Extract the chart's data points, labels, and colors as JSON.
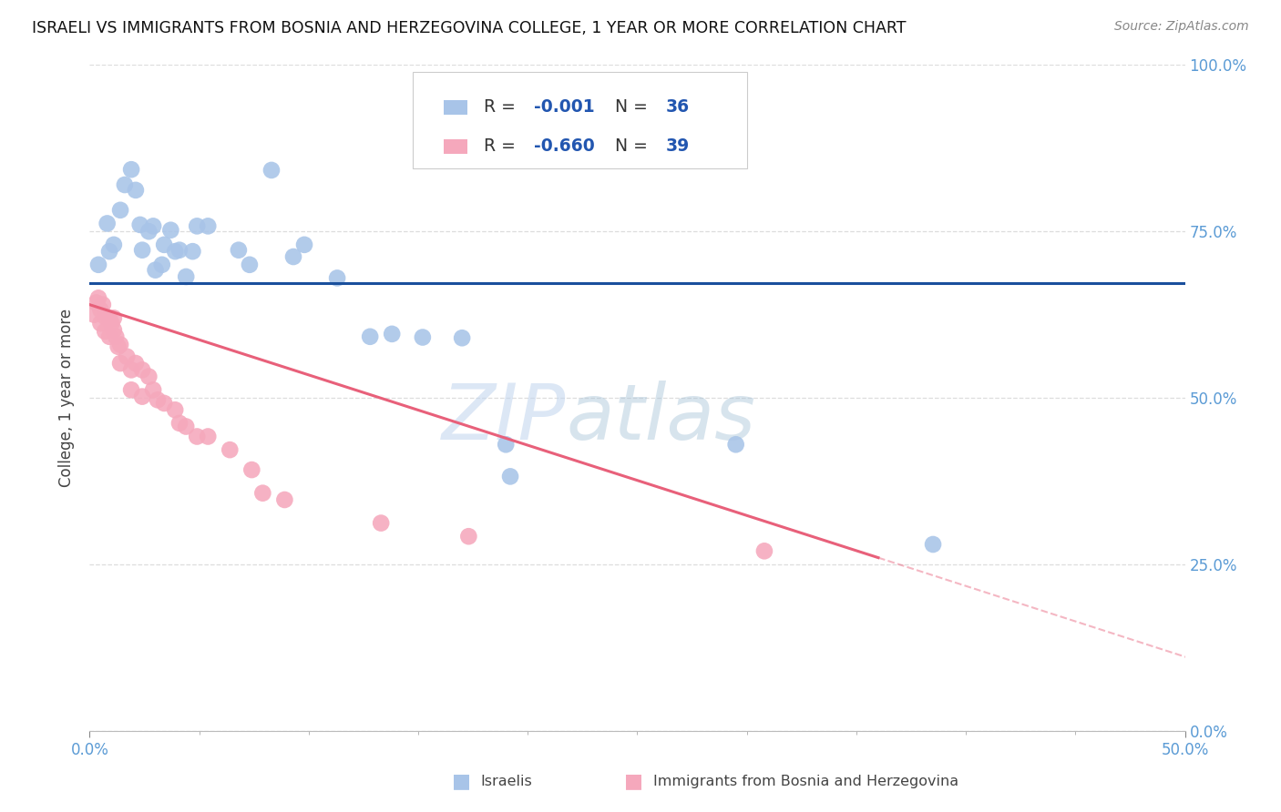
{
  "title": "ISRAELI VS IMMIGRANTS FROM BOSNIA AND HERZEGOVINA COLLEGE, 1 YEAR OR MORE CORRELATION CHART",
  "source": "Source: ZipAtlas.com",
  "ylabel_label": "College, 1 year or more",
  "legend_labels": [
    "Israelis",
    "Immigrants from Bosnia and Herzegovina"
  ],
  "blue_R": "-0.001",
  "blue_N": "36",
  "pink_R": "-0.660",
  "pink_N": "39",
  "blue_color": "#a8c4e8",
  "pink_color": "#f5a8bc",
  "blue_line_color": "#1a4f9c",
  "pink_line_color": "#e8607a",
  "blue_scatter": [
    [
      0.004,
      0.7
    ],
    [
      0.008,
      0.762
    ],
    [
      0.009,
      0.72
    ],
    [
      0.011,
      0.73
    ],
    [
      0.014,
      0.782
    ],
    [
      0.016,
      0.82
    ],
    [
      0.019,
      0.843
    ],
    [
      0.021,
      0.812
    ],
    [
      0.023,
      0.76
    ],
    [
      0.024,
      0.722
    ],
    [
      0.027,
      0.75
    ],
    [
      0.029,
      0.758
    ],
    [
      0.03,
      0.692
    ],
    [
      0.033,
      0.7
    ],
    [
      0.034,
      0.73
    ],
    [
      0.037,
      0.752
    ],
    [
      0.039,
      0.72
    ],
    [
      0.041,
      0.722
    ],
    [
      0.044,
      0.682
    ],
    [
      0.047,
      0.72
    ],
    [
      0.049,
      0.758
    ],
    [
      0.054,
      0.758
    ],
    [
      0.068,
      0.722
    ],
    [
      0.073,
      0.7
    ],
    [
      0.083,
      0.842
    ],
    [
      0.093,
      0.712
    ],
    [
      0.098,
      0.73
    ],
    [
      0.113,
      0.68
    ],
    [
      0.128,
      0.592
    ],
    [
      0.138,
      0.596
    ],
    [
      0.152,
      0.591
    ],
    [
      0.17,
      0.59
    ],
    [
      0.19,
      0.43
    ],
    [
      0.192,
      0.382
    ],
    [
      0.295,
      0.43
    ],
    [
      0.385,
      0.28
    ]
  ],
  "pink_scatter": [
    [
      0.002,
      0.625
    ],
    [
      0.003,
      0.643
    ],
    [
      0.004,
      0.65
    ],
    [
      0.005,
      0.632
    ],
    [
      0.005,
      0.612
    ],
    [
      0.006,
      0.64
    ],
    [
      0.007,
      0.622
    ],
    [
      0.007,
      0.6
    ],
    [
      0.009,
      0.62
    ],
    [
      0.009,
      0.592
    ],
    [
      0.01,
      0.612
    ],
    [
      0.011,
      0.62
    ],
    [
      0.011,
      0.602
    ],
    [
      0.012,
      0.592
    ],
    [
      0.013,
      0.577
    ],
    [
      0.014,
      0.58
    ],
    [
      0.014,
      0.552
    ],
    [
      0.017,
      0.562
    ],
    [
      0.019,
      0.542
    ],
    [
      0.019,
      0.512
    ],
    [
      0.021,
      0.552
    ],
    [
      0.024,
      0.542
    ],
    [
      0.024,
      0.502
    ],
    [
      0.027,
      0.532
    ],
    [
      0.029,
      0.512
    ],
    [
      0.031,
      0.497
    ],
    [
      0.034,
      0.492
    ],
    [
      0.039,
      0.482
    ],
    [
      0.041,
      0.462
    ],
    [
      0.044,
      0.457
    ],
    [
      0.049,
      0.442
    ],
    [
      0.054,
      0.442
    ],
    [
      0.064,
      0.422
    ],
    [
      0.074,
      0.392
    ],
    [
      0.079,
      0.357
    ],
    [
      0.089,
      0.347
    ],
    [
      0.133,
      0.312
    ],
    [
      0.173,
      0.292
    ],
    [
      0.308,
      0.27
    ]
  ],
  "blue_line": [
    [
      0.0,
      0.672
    ],
    [
      0.5,
      0.672
    ]
  ],
  "pink_line_solid": [
    [
      0.0,
      0.64
    ],
    [
      0.36,
      0.26
    ]
  ],
  "pink_line_dash": [
    [
      0.36,
      0.26
    ],
    [
      0.52,
      0.09
    ]
  ],
  "xlim": [
    0.0,
    0.5
  ],
  "ylim": [
    0.0,
    1.0
  ],
  "xtick_major": [
    0.0,
    0.5
  ],
  "xtick_major_labels": [
    "0.0%",
    "50.0%"
  ],
  "xtick_minor": [
    0.05,
    0.1,
    0.15,
    0.2,
    0.25,
    0.3,
    0.35,
    0.4,
    0.45
  ],
  "yticks": [
    0.0,
    0.25,
    0.5,
    0.75,
    1.0
  ],
  "ytick_labels": [
    "0.0%",
    "25.0%",
    "50.0%",
    "75.0%",
    "100.0%"
  ],
  "watermark_top": "ZIP",
  "watermark_bottom": "atlas",
  "background": "#ffffff",
  "grid_color": "#dddddd",
  "tick_label_color": "#5b9bd5"
}
